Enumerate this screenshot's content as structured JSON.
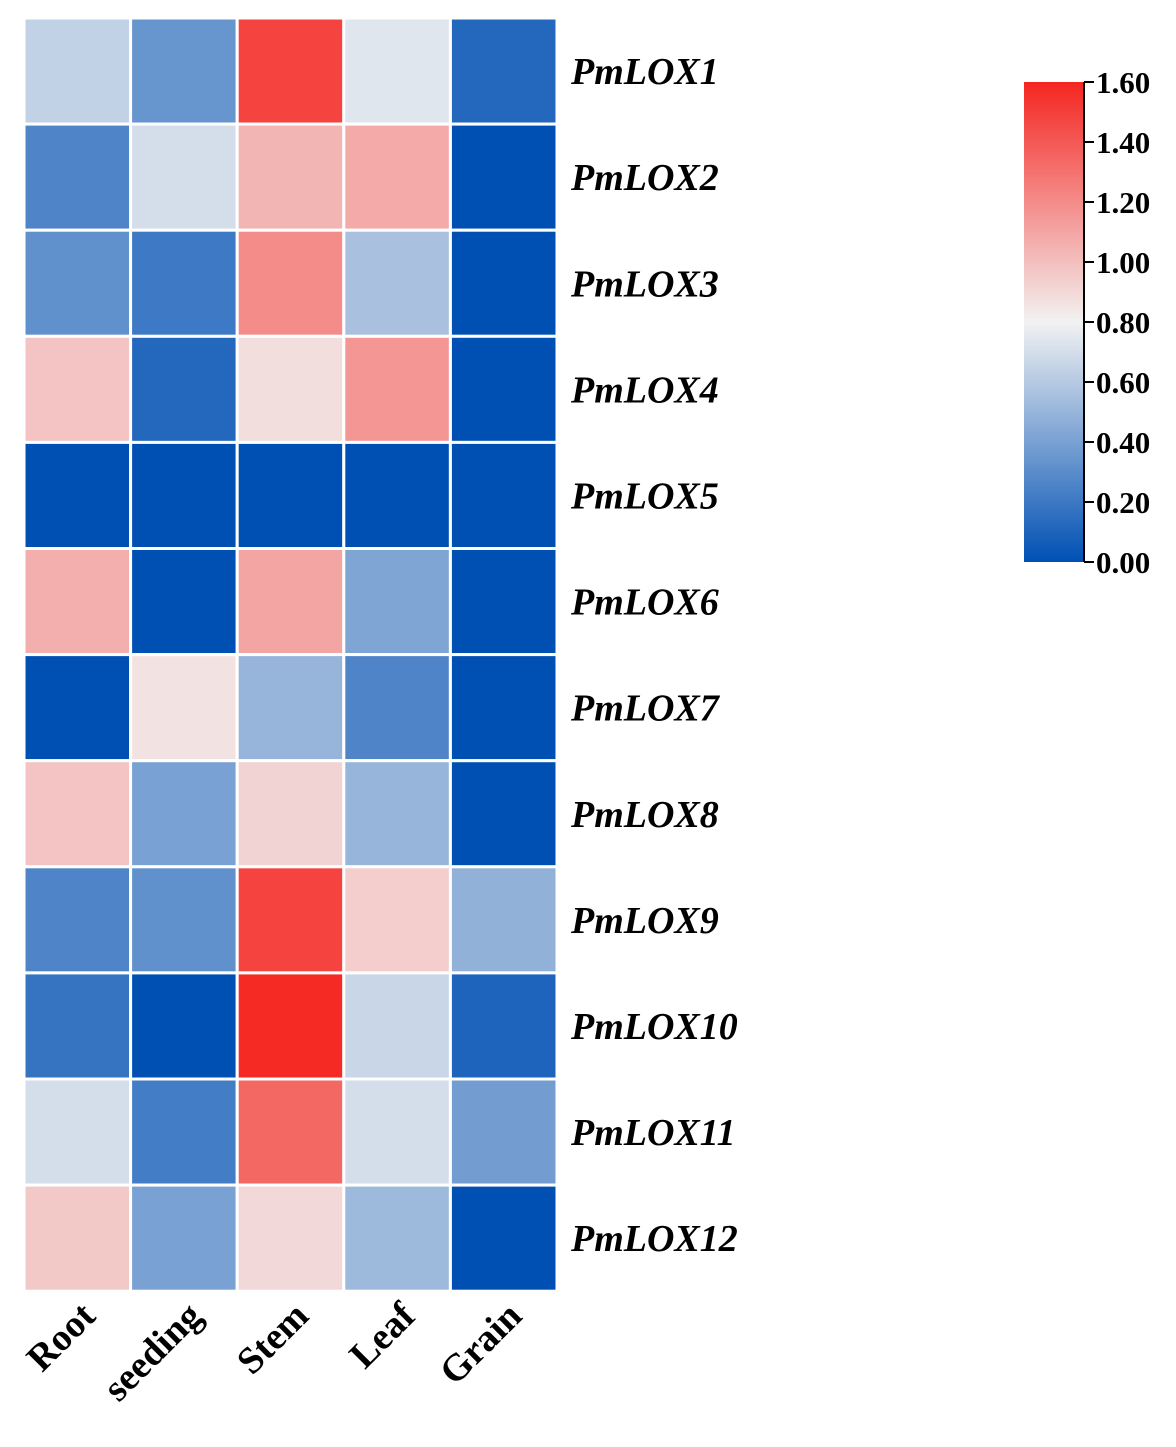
{
  "chart_data": {
    "type": "heatmap",
    "rows": [
      "PmLOX1",
      "PmLOX2",
      "PmLOX3",
      "PmLOX4",
      "PmLOX5",
      "PmLOX6",
      "PmLOX7",
      "PmLOX8",
      "PmLOX9",
      "PmLOX10",
      "PmLOX11",
      "PmLOX12"
    ],
    "columns": [
      "Root",
      "seeding",
      "Stem",
      "Leaf",
      "Grain"
    ],
    "values": [
      [
        0.64,
        0.34,
        1.48,
        0.74,
        0.12
      ],
      [
        0.26,
        0.7,
        1.04,
        1.08,
        0.0
      ],
      [
        0.32,
        0.2,
        1.2,
        0.56,
        0.0
      ],
      [
        0.98,
        0.12,
        0.88,
        1.16,
        0.0
      ],
      [
        0.0,
        0.0,
        0.0,
        0.0,
        0.0
      ],
      [
        1.06,
        0.0,
        1.1,
        0.42,
        0.0
      ],
      [
        0.0,
        0.86,
        0.5,
        0.26,
        0.0
      ],
      [
        0.98,
        0.4,
        0.92,
        0.5,
        0.0
      ],
      [
        0.26,
        0.32,
        1.48,
        0.94,
        0.48
      ],
      [
        0.18,
        0.0,
        1.58,
        0.66,
        0.1
      ],
      [
        0.7,
        0.22,
        1.34,
        0.7,
        0.38
      ],
      [
        0.96,
        0.4,
        0.9,
        0.52,
        0.0
      ]
    ],
    "colorbar": {
      "min": 0.0,
      "max": 1.6,
      "ticks": [
        "0.00",
        "0.20",
        "0.40",
        "0.60",
        "0.80",
        "1.00",
        "1.20",
        "1.40",
        "1.60"
      ],
      "colors": {
        "low": "#0050b4",
        "mid": "#f2f2f2",
        "high": "#f52520"
      }
    }
  }
}
